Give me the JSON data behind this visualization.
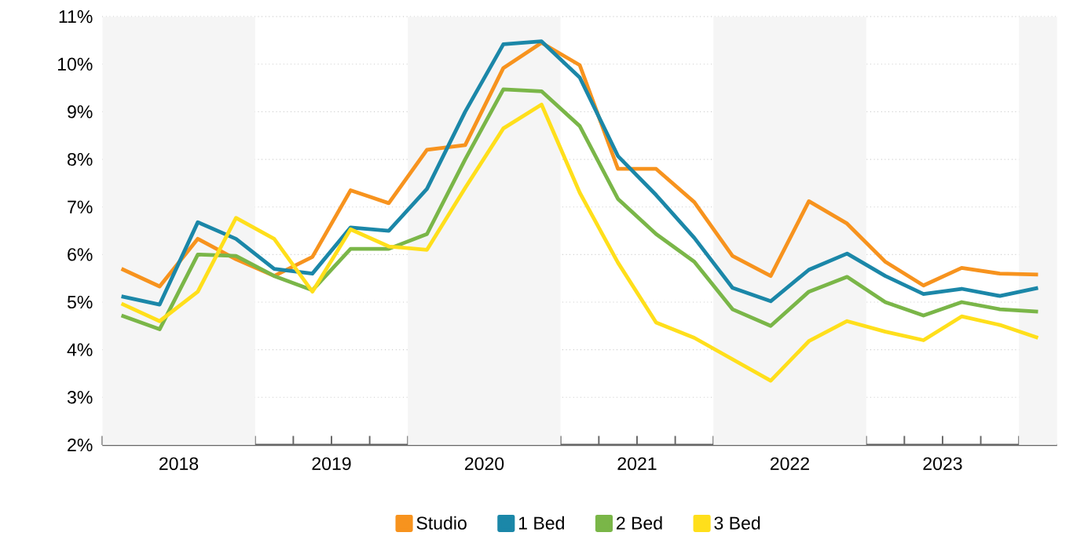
{
  "chart_data": {
    "type": "line",
    "x": [
      2018.125,
      2018.375,
      2018.625,
      2018.875,
      2019.125,
      2019.375,
      2019.625,
      2019.875,
      2020.125,
      2020.375,
      2020.625,
      2020.875,
      2021.125,
      2021.375,
      2021.625,
      2021.875,
      2022.125,
      2022.375,
      2022.625,
      2022.875,
      2023.125,
      2023.375,
      2023.625,
      2023.875,
      2024.125
    ],
    "series": [
      {
        "name": "Studio",
        "color": "#f7931e",
        "values": [
          5.7,
          5.33,
          6.33,
          5.9,
          5.55,
          5.95,
          7.35,
          7.08,
          8.2,
          8.3,
          9.92,
          10.45,
          9.98,
          7.8,
          7.8,
          7.1,
          5.97,
          5.55,
          7.12,
          6.65,
          5.85,
          5.35,
          5.72,
          5.6,
          5.58
        ]
      },
      {
        "name": "1 Bed",
        "color": "#1b87a8",
        "values": [
          5.12,
          4.95,
          6.68,
          6.33,
          5.7,
          5.6,
          6.57,
          6.5,
          7.38,
          9.0,
          10.42,
          10.48,
          9.72,
          8.07,
          7.25,
          6.35,
          5.3,
          5.02,
          5.68,
          6.02,
          5.55,
          5.17,
          5.28,
          5.13,
          5.3
        ]
      },
      {
        "name": "2 Bed",
        "color": "#7ab648",
        "values": [
          4.72,
          4.43,
          6.0,
          5.97,
          5.55,
          5.25,
          6.12,
          6.12,
          6.43,
          8.0,
          9.47,
          9.43,
          8.7,
          7.17,
          6.43,
          5.85,
          4.85,
          4.5,
          5.22,
          5.53,
          5.0,
          4.72,
          5.0,
          4.85,
          4.8
        ]
      },
      {
        "name": "3 Bed",
        "color": "#ffdf1b",
        "values": [
          4.97,
          4.6,
          5.22,
          6.77,
          6.33,
          5.22,
          6.53,
          6.17,
          6.1,
          7.4,
          8.65,
          9.15,
          7.3,
          5.83,
          4.57,
          4.25,
          3.8,
          3.35,
          4.18,
          4.6,
          4.38,
          4.2,
          4.7,
          4.52,
          4.25
        ]
      }
    ],
    "xlim": [
      2018,
      2024.25
    ],
    "xticks": [
      {
        "value": 2018,
        "label": null
      },
      {
        "value": 2018.25,
        "label": null
      },
      {
        "value": 2018.5,
        "label": "2018"
      },
      {
        "value": 2018.75,
        "label": null
      },
      {
        "value": 2019,
        "label": null
      },
      {
        "value": 2019.25,
        "label": null
      },
      {
        "value": 2019.5,
        "label": "2019"
      },
      {
        "value": 2019.75,
        "label": null
      },
      {
        "value": 2020,
        "label": null
      },
      {
        "value": 2020.25,
        "label": null
      },
      {
        "value": 2020.5,
        "label": "2020"
      },
      {
        "value": 2020.75,
        "label": null
      },
      {
        "value": 2021,
        "label": null
      },
      {
        "value": 2021.25,
        "label": null
      },
      {
        "value": 2021.5,
        "label": "2021"
      },
      {
        "value": 2021.75,
        "label": null
      },
      {
        "value": 2022,
        "label": null
      },
      {
        "value": 2022.25,
        "label": null
      },
      {
        "value": 2022.5,
        "label": "2022"
      },
      {
        "value": 2022.75,
        "label": null
      },
      {
        "value": 2023,
        "label": null
      },
      {
        "value": 2023.25,
        "label": null
      },
      {
        "value": 2023.5,
        "label": "2023"
      },
      {
        "value": 2023.75,
        "label": null
      },
      {
        "value": 2024,
        "label": null
      }
    ],
    "ylim": [
      2,
      11
    ],
    "yticks": [
      {
        "value": 2,
        "label": "2%"
      },
      {
        "value": 3,
        "label": "3%"
      },
      {
        "value": 4,
        "label": "4%"
      },
      {
        "value": 5,
        "label": "5%"
      },
      {
        "value": 6,
        "label": "6%"
      },
      {
        "value": 7,
        "label": "7%"
      },
      {
        "value": 8,
        "label": "8%"
      },
      {
        "value": 9,
        "label": "9%"
      },
      {
        "value": 10,
        "label": "10%"
      },
      {
        "value": 11,
        "label": "11%"
      }
    ],
    "bands": [
      {
        "axis": "x",
        "from": 2018,
        "to": 2019,
        "color": "#f5f5f5"
      },
      {
        "axis": "x",
        "from": 2020,
        "to": 2021,
        "color": "#f5f5f5"
      },
      {
        "axis": "x",
        "from": 2022,
        "to": 2023,
        "color": "#f5f5f5"
      },
      {
        "axis": "x",
        "from": 2024,
        "to": 2024.25,
        "color": "#f5f5f5"
      }
    ],
    "grid": "y",
    "legend": "bottom"
  }
}
